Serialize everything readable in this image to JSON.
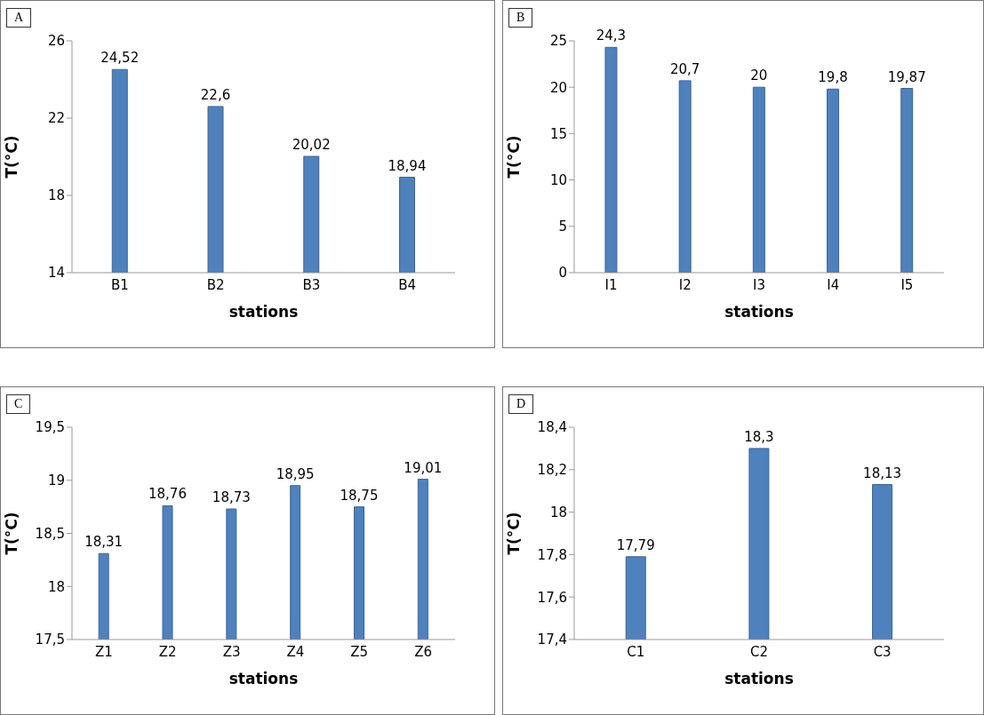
{
  "chart_data": [
    {
      "type": "bar",
      "title": "A",
      "xlabel": "stations",
      "ylabel": "T(°C)",
      "categories": [
        "B1",
        "B2",
        "B3",
        "B4"
      ],
      "values": [
        24.52,
        22.6,
        20.02,
        18.94
      ],
      "value_labels": [
        "24,52",
        "22,6",
        "20,02",
        "18,94"
      ],
      "color": "#4f81bd",
      "ylim": [
        14,
        26
      ],
      "yticks": [
        14,
        18,
        22,
        26
      ]
    },
    {
      "type": "bar",
      "title": "B",
      "xlabel": "stations",
      "ylabel": "T(°C)",
      "categories": [
        "I1",
        "I2",
        "I3",
        "I4",
        "I5"
      ],
      "values": [
        24.3,
        20.7,
        20,
        19.8,
        19.87
      ],
      "value_labels": [
        "24,3",
        "20,7",
        "20",
        "19,8",
        "19,87"
      ],
      "color": "#4f81bd",
      "ylim": [
        0,
        25
      ],
      "yticks": [
        0,
        5,
        10,
        15,
        20,
        25
      ]
    },
    {
      "type": "bar",
      "title": "C",
      "xlabel": "stations",
      "ylabel": "T(°C)",
      "categories": [
        "Z1",
        "Z2",
        "Z3",
        "Z4",
        "Z5",
        "Z6"
      ],
      "values": [
        18.31,
        18.76,
        18.73,
        18.95,
        18.75,
        19.01
      ],
      "value_labels": [
        "18,31",
        "18,76",
        "18,73",
        "18,95",
        "18,75",
        "19,01"
      ],
      "color": "#4f81bd",
      "ylim": [
        17.5,
        19.5
      ],
      "yticks": [
        {
          "value": 17.5,
          "label": "17,5"
        },
        18,
        {
          "value": 18.5,
          "label": "18,5"
        },
        19,
        {
          "value": 19.5,
          "label": "19,5"
        }
      ]
    },
    {
      "type": "bar",
      "title": "D",
      "xlabel": "stations",
      "ylabel": "T(°C)",
      "categories": [
        "C1",
        "C2",
        "C3"
      ],
      "values": [
        17.79,
        18.3,
        18.13
      ],
      "value_labels": [
        "17,79",
        "18,3",
        "18,13"
      ],
      "color": "#4f81bd",
      "ylim": [
        17.4,
        18.4
      ],
      "yticks": [
        {
          "value": 17.4,
          "label": "17,4"
        },
        {
          "value": 17.6,
          "label": "17,6"
        },
        {
          "value": 17.8,
          "label": "17,8"
        },
        18,
        {
          "value": 18.2,
          "label": "18,2"
        },
        {
          "value": 18.4,
          "label": "18,4"
        }
      ]
    }
  ]
}
